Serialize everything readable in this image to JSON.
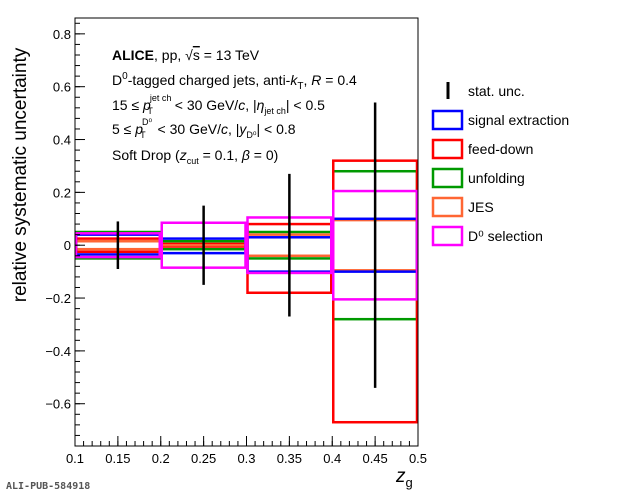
{
  "chart_data": {
    "type": "bar",
    "xlabel": "z",
    "xlabel_sub": "g",
    "ylabel": "relative systematic uncertainty",
    "xlim": [
      0.1,
      0.5
    ],
    "ylim": [
      -0.76,
      0.86
    ],
    "x_ticks": [
      "0.1",
      "0.15",
      "0.2",
      "0.25",
      "0.3",
      "0.35",
      "0.4",
      "0.45",
      "0.5"
    ],
    "y_ticks": [
      "−0.6",
      "−0.4",
      "−0.2",
      "0",
      "0.2",
      "0.4",
      "0.6",
      "0.8"
    ],
    "bins": [
      [
        0.1,
        0.2
      ],
      [
        0.2,
        0.3
      ],
      [
        0.3,
        0.4
      ],
      [
        0.4,
        0.5
      ]
    ],
    "bin_centers": [
      0.15,
      0.25,
      0.35,
      0.45
    ],
    "stat_unc": [
      0.09,
      0.15,
      0.27,
      0.54
    ],
    "series": [
      {
        "name": "signal extraction",
        "color": "#0000ff",
        "up": [
          0.04,
          0.025,
          0.03,
          0.1
        ],
        "down": [
          -0.035,
          -0.03,
          -0.1,
          -0.1
        ]
      },
      {
        "name": "feed-down",
        "color": "#ff0000",
        "up": [
          0.025,
          0.005,
          0.08,
          0.32
        ],
        "down": [
          -0.025,
          -0.005,
          -0.18,
          -0.67
        ]
      },
      {
        "name": "unfolding",
        "color": "#009900",
        "up": [
          0.05,
          0.015,
          0.05,
          0.28
        ],
        "down": [
          -0.05,
          -0.015,
          -0.05,
          -0.28
        ]
      },
      {
        "name": "JES",
        "color": "#ff6633",
        "up": [
          0.015,
          0.0,
          0.04,
          0.095
        ],
        "down": [
          -0.015,
          0.0,
          -0.04,
          -0.095
        ]
      },
      {
        "name": "D⁰ selection",
        "color": "#ff00ff",
        "up": [
          0.045,
          0.085,
          0.105,
          0.205
        ],
        "down": [
          -0.045,
          -0.085,
          -0.105,
          -0.205
        ]
      }
    ],
    "stat_legend": "stat. unc.",
    "legend_position": "right"
  },
  "info": {
    "experiment": "ALICE",
    "line1_rest": ", pp, √s = 13 TeV",
    "line2": "D⁰-tagged charged jets, anti-kT, R = 0.4",
    "line3": "15 ≤ pT jet ch < 30 GeV/c, |η jet ch| < 0.5",
    "line4": "5 ≤ pT D⁰ < 30 GeV/c, |y D⁰| < 0.8",
    "line5": "Soft Drop (zcut = 0.1, β = 0)"
  },
  "pub_id": "ALI-PUB-584918"
}
